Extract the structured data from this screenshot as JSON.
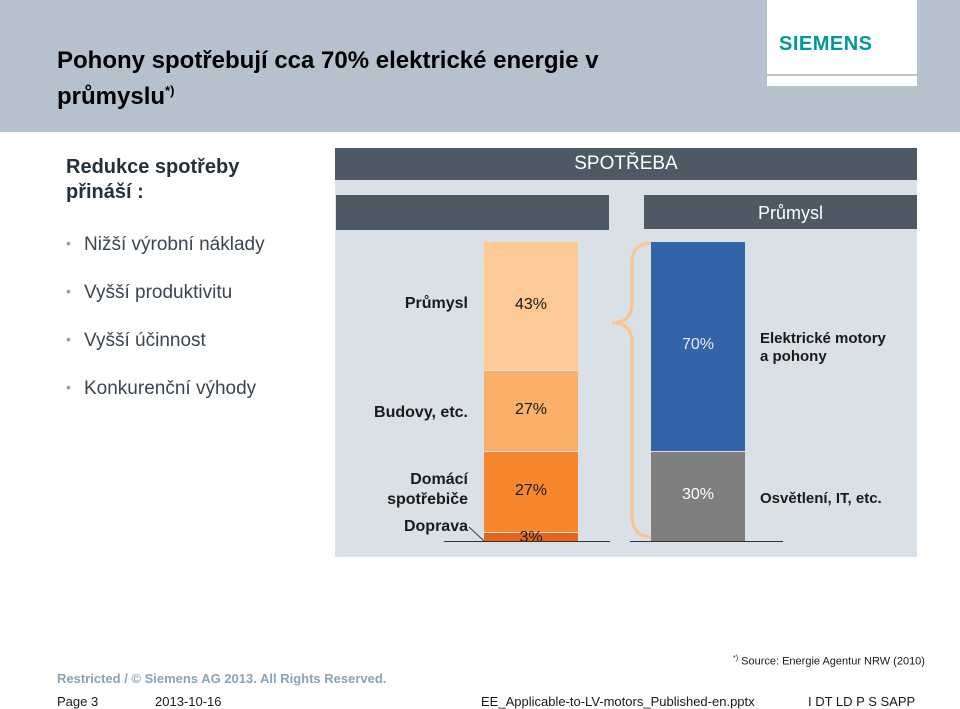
{
  "header": {
    "title_line1": "Pohony spotřebují cca 70% elektrické energie v",
    "title_line2": "průmyslu",
    "title_sup": "*)",
    "logo": "SIEMENS"
  },
  "left": {
    "heading_line1": "Redukce spotřeby",
    "heading_line2": "přináší :",
    "bullets": [
      "Nižší výrobní náklady",
      "Vyšší produktivitu",
      "Vyšší účinnost",
      "Konkurenční výhody"
    ]
  },
  "chart_header": {
    "spotreba": "SPOTŘEBA",
    "prumysl": "Průmysl"
  },
  "chart_data": [
    {
      "type": "bar",
      "title": "SPOTŘEBA",
      "stacked": true,
      "categories": [
        "Průmysl",
        "Budovy, etc.",
        "Domácí spotřebiče",
        "Doprava"
      ],
      "labels": {
        "prumysl": "Průmysl",
        "budovy": "Budovy, etc.",
        "domaci1": "Domácí",
        "domaci2": "spotřebiče",
        "doprava": "Doprava"
      },
      "values": [
        43,
        27,
        27,
        3
      ],
      "value_labels": [
        "43%",
        "27%",
        "27%",
        "3%"
      ],
      "colors": [
        "#fdca97",
        "#fbb06a",
        "#f7872f",
        "#e5661a"
      ]
    },
    {
      "type": "bar",
      "title": "Průmysl",
      "stacked": true,
      "categories": [
        "Elektrické motory a pohony",
        "Osvětlení, IT, etc."
      ],
      "labels": {
        "motory1": "Elektrické motory",
        "motory2": "a pohony",
        "osvetleni": "Osvětlení, IT, etc."
      },
      "values": [
        70,
        30
      ],
      "value_labels": [
        "70%",
        "30%"
      ],
      "colors": [
        "#3464a8",
        "#7f7f7f"
      ]
    }
  ],
  "footer": {
    "restricted": "Restricted / © Siemens AG 2013. All Rights Reserved.",
    "source_sup": "*)",
    "source": "Source: Energie Agentur NRW (2010)",
    "page": "Page 3",
    "date": "2013-10-16",
    "file": "EE_Applicable-to-LV-motors_Published-en.pptx",
    "dept": "I DT LD P S SAPP"
  },
  "colors": {
    "header_bg": "#b5c2cd",
    "bar_dark": "#4d5a66",
    "chart_bg": "#d9e0e6",
    "brand": "#009999",
    "restricted_text": "#8aa3b5"
  }
}
